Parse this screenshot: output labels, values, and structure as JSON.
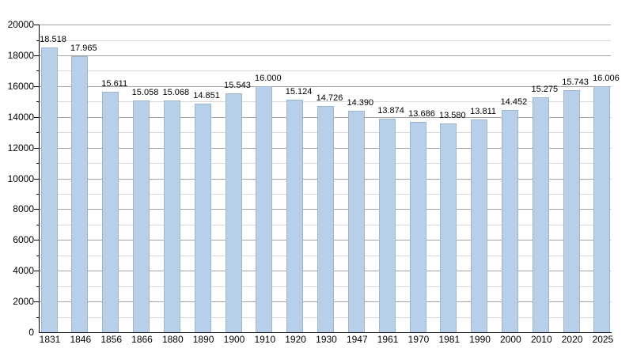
{
  "chart_data": {
    "type": "bar",
    "title": "",
    "xlabel": "",
    "ylabel": "",
    "categories": [
      "1831",
      "1846",
      "1856",
      "1866",
      "1880",
      "1890",
      "1900",
      "1910",
      "1920",
      "1930",
      "1947",
      "1961",
      "1970",
      "1981",
      "1990",
      "2000",
      "2010",
      "2020",
      "2025"
    ],
    "values": [
      18518,
      17965,
      15611,
      15058,
      15068,
      14851,
      15543,
      16000,
      15124,
      14726,
      14390,
      13874,
      13686,
      13580,
      13811,
      14452,
      15275,
      15743,
      16006
    ],
    "value_labels": [
      "18.518",
      "17.965",
      "15.611",
      "15.058",
      "15.068",
      "14.851",
      "15.543",
      "16.000",
      "15.124",
      "14.726",
      "14.390",
      "13.874",
      "13.686",
      "13.580",
      "13.811",
      "14.452",
      "15.275",
      "15.743",
      "16.006"
    ],
    "ylim": [
      0,
      20000
    ],
    "ytick_labels": [
      "0",
      "2000",
      "4000",
      "6000",
      "8000",
      "10000",
      "12000",
      "14000",
      "16000",
      "18000",
      "20000"
    ],
    "ytick_major_step": 2000,
    "ytick_minor_step": 1000,
    "grid": "major and minor horizontal",
    "legend": "none",
    "colors": {
      "bar_fill": "#b8cfe9",
      "bar_border": "#9db5ce",
      "grid_major": "#a3a3a3",
      "grid_minor": "#dadada",
      "axis": "#000000",
      "text": "#000000",
      "background": "#ffffff"
    }
  }
}
